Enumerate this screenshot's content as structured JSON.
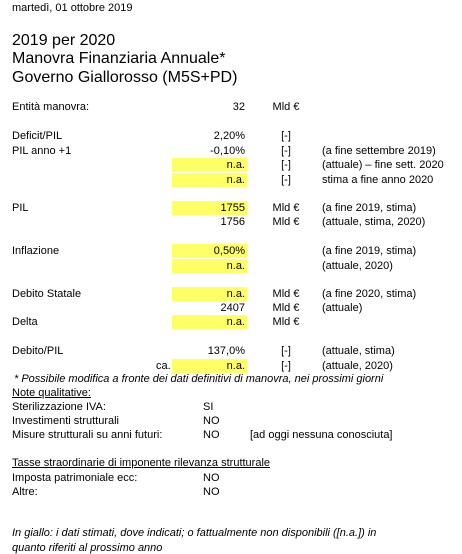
{
  "date": "martedì, 01 ottobre 2019",
  "header": {
    "title": [
      "2019 per 2020",
      "Manovra Finanziaria Annuale*",
      "Governo Giallorosso (M5S+PD)"
    ]
  },
  "table": {
    "rows": [
      {
        "label": "Entità manovra:",
        "value": "32",
        "unit": "Mld €"
      },
      {
        "label": "Deficit/PIL",
        "value": "2,20%",
        "unit": "[-]"
      },
      {
        "label": "PIL anno +1",
        "value": "-0,10%",
        "unit": "[-]",
        "note": "(a fine settembre 2019)"
      },
      {
        "value": "n.a.",
        "unit": "[-]",
        "note": "(attuale) – fine sett. 2020"
      },
      {
        "value": "n.a.",
        "unit": "[-]",
        "note": "stima a fine anno 2020"
      },
      {
        "label": "PIL",
        "value": "1755",
        "unit": "Mld €",
        "note": "(a fine 2019, stima)"
      },
      {
        "value": "1756",
        "unit": "Mld €",
        "note": "(attuale, stima, 2020)"
      },
      {
        "label": "Inflazione",
        "value": "0,50%",
        "note": "(a fine 2019, stima)"
      },
      {
        "value": "n.a.",
        "note": "(attuale, 2020)"
      },
      {
        "label": "Debito Statale",
        "value": "n.a.",
        "unit": "Mld €",
        "note": "(a fine 2020, stima)"
      },
      {
        "value": "2407",
        "unit": "Mld €",
        "note": "(attuale)"
      },
      {
        "label": "Delta",
        "value": "n.a.",
        "unit": "Mld €"
      },
      {
        "label": "Debito/PIL",
        "value": "137,0%",
        "unit": "[-]",
        "note": "(attuale, stima)"
      },
      {
        "prefix": "ca.",
        "value": "n.a.",
        "unit": "[-]",
        "note": "(attuale, 2020)"
      }
    ]
  },
  "footnote": "* Possibile modifica a fronte dei dati definitivi di manovra, nei prossimi giorni",
  "qualitative": {
    "title": "Note qualitative:",
    "items": [
      {
        "label": "Sterilizzazione IVA:",
        "value": "SI"
      },
      {
        "label": "Investimenti strutturali",
        "value": "NO"
      },
      {
        "label": "Misure strutturali su anni futuri:",
        "value": "NO",
        "note": "[ad oggi nessuna conosciuta]"
      }
    ]
  },
  "taxes": {
    "title": "Tasse straordinarie di imponente rilevanza strutturale",
    "items": [
      {
        "label": "Imposta patrimoniale ecc:",
        "value": "NO"
      },
      {
        "label": "Altre:",
        "value": "NO"
      }
    ]
  },
  "legend": [
    "In giallo: i dati stimati, dove indicati; o fattualmente non disponibili ([n.a.]) in",
    "quanto riferiti al prossimo anno"
  ]
}
